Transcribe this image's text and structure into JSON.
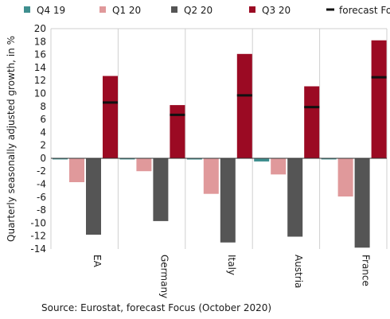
{
  "chart_data": {
    "type": "bar",
    "ylabel": "Quarterly seasonally adjusted growth, in %",
    "ylim": [
      -14,
      20
    ],
    "ytick_step": 2,
    "grid": "vertical separators between categories",
    "legend_position": "top",
    "categories": [
      "EA",
      "Germany",
      "Italy",
      "Austria",
      "France"
    ],
    "series": [
      {
        "name": "Q4 19",
        "color": "#3f8f8f",
        "values": [
          0.0,
          0.0,
          -0.2,
          -0.5,
          -0.1
        ]
      },
      {
        "name": "Q1 20",
        "color": "#e0999b",
        "values": [
          -3.7,
          -2.0,
          -5.5,
          -2.5,
          -5.9
        ]
      },
      {
        "name": "Q2 20",
        "color": "#555555",
        "values": [
          -11.8,
          -9.7,
          -13.0,
          -12.1,
          -13.8
        ]
      },
      {
        "name": "Q3 20",
        "color": "#9b0a23",
        "values": [
          12.7,
          8.2,
          16.1,
          11.1,
          18.2
        ]
      }
    ],
    "forecast": {
      "name": "forecast Focus",
      "color": "#111111",
      "values": [
        8.6,
        6.7,
        9.7,
        7.9,
        12.5
      ]
    },
    "source": "Source: Eurostat, forecast Focus (October 2020)"
  }
}
